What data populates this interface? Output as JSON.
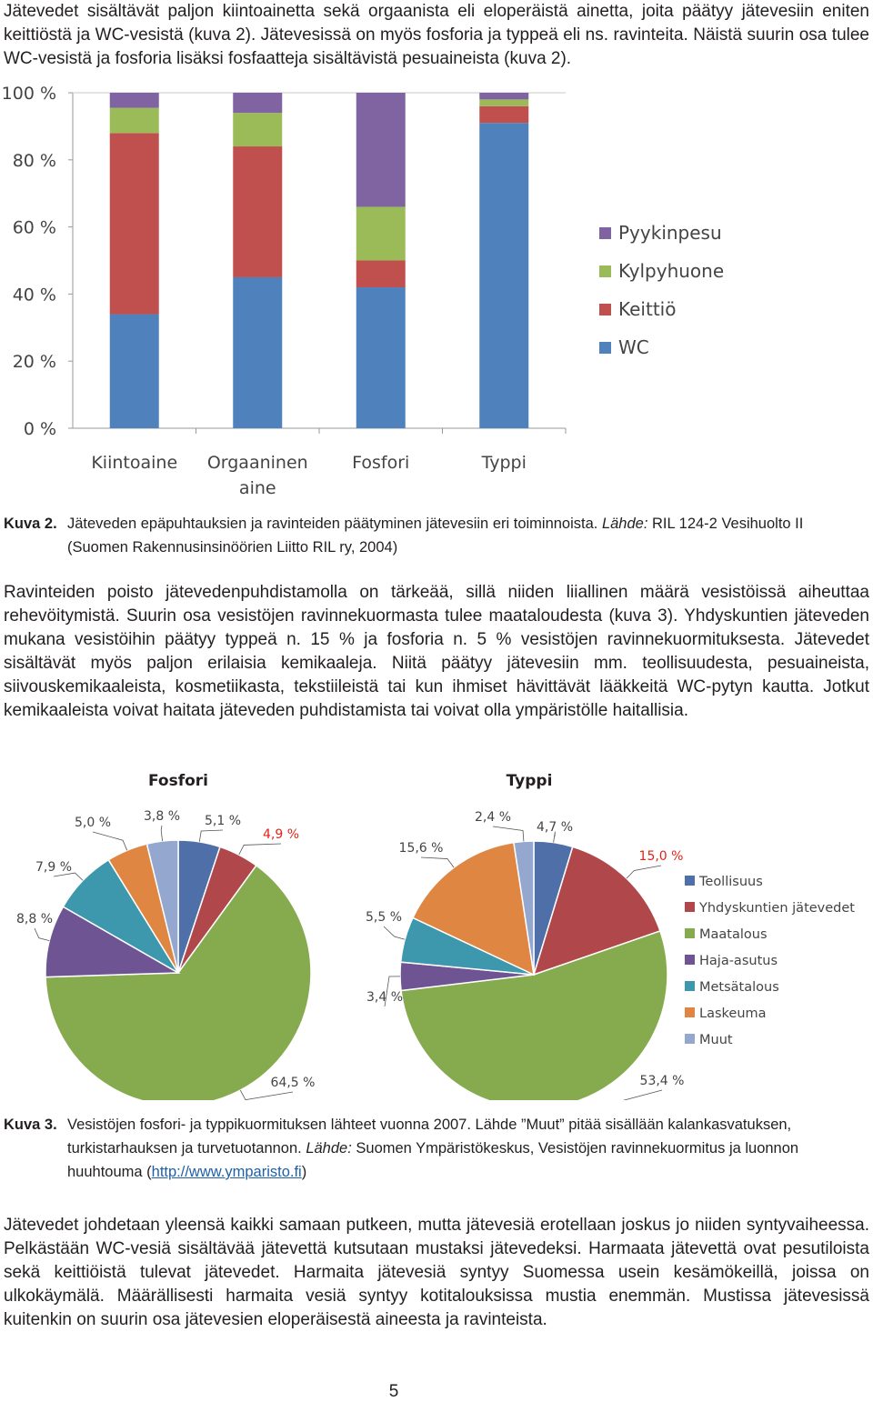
{
  "intro_paragraph": "Jätevedet sisältävät paljon kiintoainetta sekä orgaanista eli eloperäistä ainetta, joita päätyy jätevesiin eniten keittiöstä ja WC-vesistä (kuva 2). Jätevesissä on myös fosforia ja typpeä eli ns. ravinteita. Näistä suurin osa tulee WC-vesistä ja fosforia lisäksi fosfaatteja sisältävistä pesuaineista (kuva 2).",
  "figure2": {
    "label": "Kuva 2.",
    "caption_main": "Jäteveden epäpuhtauksien ja ravinteiden päätyminen jätevesiin eri toiminnoista. ",
    "source_label": "Lähde:",
    "source_text": " RIL 124-2 Vesihuolto II (Suomen Rakennusinsinöörien Liitto RIL ry, 2004)"
  },
  "paragraph2": "Ravinteiden poisto jätevedenpuhdistamolla on tärkeää, sillä niiden liiallinen määrä vesistöissä aiheuttaa rehevöitymistä. Suurin osa vesistöjen ravinnekuormasta tulee maataloudesta (kuva 3). Yhdyskuntien jäteveden mukana vesistöihin päätyy typpeä n. 15 % ja fosforia n. 5 % vesistöjen ravinnekuormituksesta. Jätevedet sisältävät myös paljon erilaisia kemikaaleja. Niitä päätyy jätevesiin mm. teollisuudesta, pesuaineista, siivouskemikaaleista, kosmetiikasta, tekstiileistä tai kun ihmiset hävittävät lääkkeitä WC-pytyn kautta. Jotkut kemikaaleista voivat haitata jäteveden puhdistamista tai voivat olla ympäristölle haitallisia.",
  "figure3": {
    "label": "Kuva 3.",
    "caption_main": "Vesistöjen fosfori- ja typpikuormituksen lähteet vuonna 2007. Lähde ”Muut” pitää sisällään kalankasvatuksen, turkistarhauksen ja turvetuotannon. ",
    "source_label": "Lähde:",
    "source_text": " Suomen Ympäristökeskus, Vesistöjen ravinnekuormitus ja luonnon huuhtouma (",
    "link_text": "http://www.ymparisto.fi",
    "source_end": ")"
  },
  "paragraph3": "Jätevedet johdetaan yleensä kaikki samaan putkeen, mutta jätevesiä erotellaan joskus jo niiden syntyvaiheessa. Pelkästään WC-vesiä sisältävää jätevettä kutsutaan mustaksi jätevedeksi. Harmaata jätevettä ovat pesutiloista sekä keittiöistä tulevat jätevedet. Harmaita jätevesiä syntyy Suomessa usein kesämökeillä, joissa on ulkokäymälä. Määrällisesti harmaita vesiä syntyy kotitalouksissa mustia enemmän. Mustissa jätevesissä kuitenkin on suurin osa jätevesien eloperäisestä aineesta ja ravinteista.",
  "page_number": "5",
  "chart_data": [
    {
      "type": "bar",
      "stacked": true,
      "categories": [
        "Kiintoaine",
        "Orgaaninen aine",
        "Fosfori",
        "Typpi"
      ],
      "series": [
        {
          "name": "WC",
          "color": "#4f81bd",
          "values": [
            34,
            45,
            42,
            91
          ]
        },
        {
          "name": "Keittiö",
          "color": "#c0504d",
          "values": [
            54,
            39,
            8,
            5
          ]
        },
        {
          "name": "Kylpyhuone",
          "color": "#9bbb59",
          "values": [
            7.5,
            10,
            16,
            2
          ]
        },
        {
          "name": "Pyykinpesu",
          "color": "#8064a2",
          "values": [
            4.5,
            6,
            34,
            2
          ]
        }
      ],
      "ylim": [
        0,
        100
      ],
      "yticks": [
        "0 %",
        "20 %",
        "40 %",
        "60 %",
        "80 %",
        "100 %"
      ],
      "legend": "right"
    },
    {
      "type": "pie",
      "title": "Fosfori",
      "labels": [
        "Teollisuus",
        "Yhdyskuntien jätevedet",
        "Maatalous",
        "Haja-asutus",
        "Metsätalous",
        "Laskeuma",
        "Muut"
      ],
      "values": [
        5.1,
        4.9,
        64.5,
        8.8,
        7.9,
        5.0,
        3.8
      ],
      "value_labels": [
        "5,1 %",
        "4,9 %",
        "64,5 %",
        "8,8 %",
        "7,9 %",
        "5,0 %",
        "3,8 %"
      ],
      "colors": [
        "#4f6fa8",
        "#b0474a",
        "#86aa4e",
        "#6f5494",
        "#3d97ad",
        "#de8642",
        "#93a7cf"
      ],
      "highlight_label_color": "#e2231a"
    },
    {
      "type": "pie",
      "title": "Typpi",
      "labels": [
        "Teollisuus",
        "Yhdyskuntien jätevedet",
        "Maatalous",
        "Haja-asutus",
        "Metsätalous",
        "Laskeuma",
        "Muut"
      ],
      "values": [
        4.7,
        15.0,
        53.4,
        3.4,
        5.5,
        15.6,
        2.4
      ],
      "value_labels": [
        "4,7 %",
        "15,0 %",
        "53,4 %",
        "3,4 %",
        "5,5 %",
        "15,6 %",
        "2,4 %"
      ],
      "colors": [
        "#4f6fa8",
        "#b0474a",
        "#86aa4e",
        "#6f5494",
        "#3d97ad",
        "#de8642",
        "#93a7cf"
      ],
      "highlight_label_color": "#e2231a",
      "legend": "right"
    }
  ]
}
